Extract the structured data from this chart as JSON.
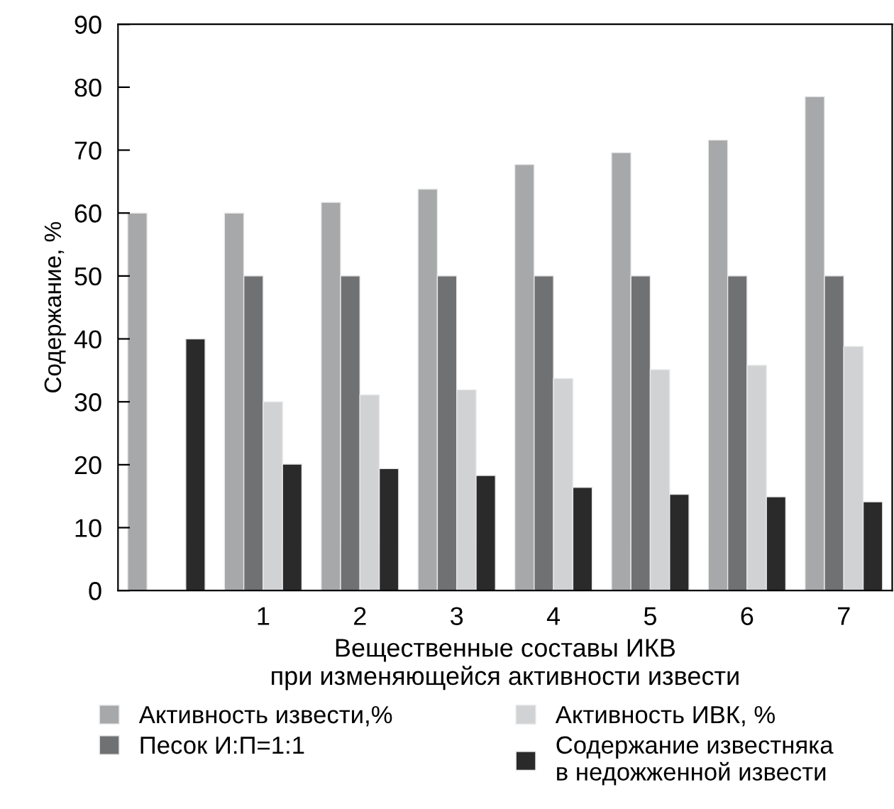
{
  "chart_data": {
    "type": "bar",
    "categories": [
      null,
      "1",
      "2",
      "3",
      "4",
      "5",
      "6",
      "7"
    ],
    "series": [
      {
        "name": "Активность извести,%",
        "color": "#a7a8aa",
        "values": [
          60,
          60,
          61.7,
          63.8,
          67.7,
          69.6,
          71.6,
          78.5
        ]
      },
      {
        "name": "Песок И:П=1:1",
        "color": "#707173",
        "values": [
          null,
          50,
          50,
          50,
          50,
          50,
          50,
          50
        ]
      },
      {
        "name": "Активность ИВК, %",
        "color": "#d1d2d4",
        "values": [
          null,
          30,
          31.1,
          31.9,
          33.7,
          35.1,
          35.8,
          38.8
        ]
      },
      {
        "name": "Содержание известняка\nв недожженной извести",
        "color": "#2a2a2a",
        "values": [
          40,
          20.1,
          19.4,
          18.3,
          16.4,
          15.3,
          14.9,
          14.1
        ]
      }
    ],
    "xlabel": "Вещественные составы ИКВ\nпри изменяющейся активности извести",
    "ylabel": "Содержание, %",
    "ylim": [
      0,
      90
    ],
    "yticks": [
      0,
      10,
      20,
      30,
      40,
      50,
      60,
      70,
      80,
      90
    ],
    "grid": false,
    "legend": "bottom"
  }
}
